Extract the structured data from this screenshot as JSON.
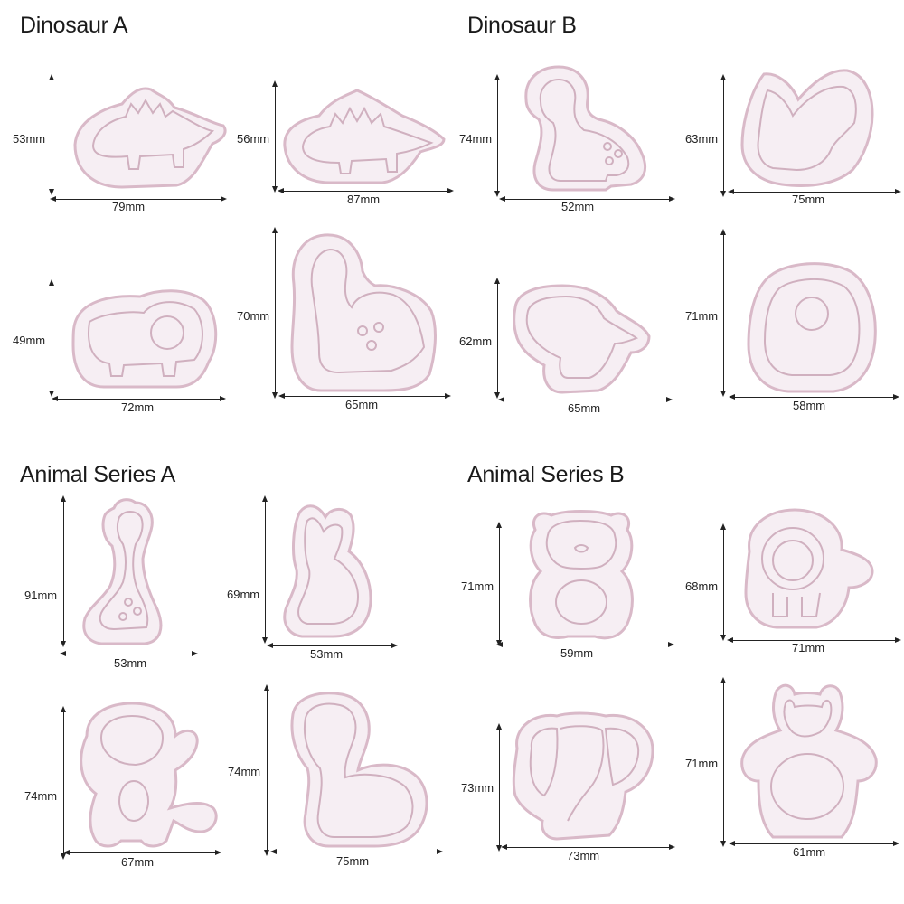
{
  "sections": {
    "dino_a": "Dinosaur A",
    "dino_b": "Dinosaur B",
    "animal_a": "Animal Series A",
    "animal_b": "Animal Series B"
  },
  "colors": {
    "plastic": "#f6eef3",
    "rim": "#d9b9c8",
    "line": "#222222"
  },
  "items": {
    "stegosaurus": {
      "icon": "stegosaurus-icon",
      "height": "53mm",
      "width": "79mm"
    },
    "spiky_dino": {
      "icon": "spiked-dinosaur-icon",
      "height": "56mm",
      "width": "87mm"
    },
    "triceratops": {
      "icon": "triceratops-icon",
      "height": "49mm",
      "width": "72mm"
    },
    "long_neck": {
      "icon": "long-neck-dinosaur-icon",
      "height": "70mm",
      "width": "65mm"
    },
    "baby_dino": {
      "icon": "baby-dinosaur-icon",
      "height": "74mm",
      "width": "52mm"
    },
    "pterodactyl": {
      "icon": "pterodactyl-icon",
      "height": "63mm",
      "width": "75mm"
    },
    "trex": {
      "icon": "t-rex-icon",
      "height": "62mm",
      "width": "65mm"
    },
    "round_dino": {
      "icon": "round-dinosaur-icon",
      "height": "71mm",
      "width": "58mm"
    },
    "giraffe": {
      "icon": "giraffe-icon",
      "height": "91mm",
      "width": "53mm"
    },
    "rabbit": {
      "icon": "rabbit-icon",
      "height": "69mm",
      "width": "53mm"
    },
    "monkey": {
      "icon": "monkey-icon",
      "height": "74mm",
      "width": "67mm"
    },
    "zebra": {
      "icon": "zebra-icon",
      "height": "74mm",
      "width": "75mm"
    },
    "bear": {
      "icon": "bear-icon",
      "height": "71mm",
      "width": "59mm"
    },
    "lion": {
      "icon": "lion-icon",
      "height": "68mm",
      "width": "71mm"
    },
    "elephant": {
      "icon": "elephant-icon",
      "height": "73mm",
      "width": "73mm"
    },
    "hippo": {
      "icon": "hippo-icon",
      "height": "71mm",
      "width": "61mm"
    }
  }
}
